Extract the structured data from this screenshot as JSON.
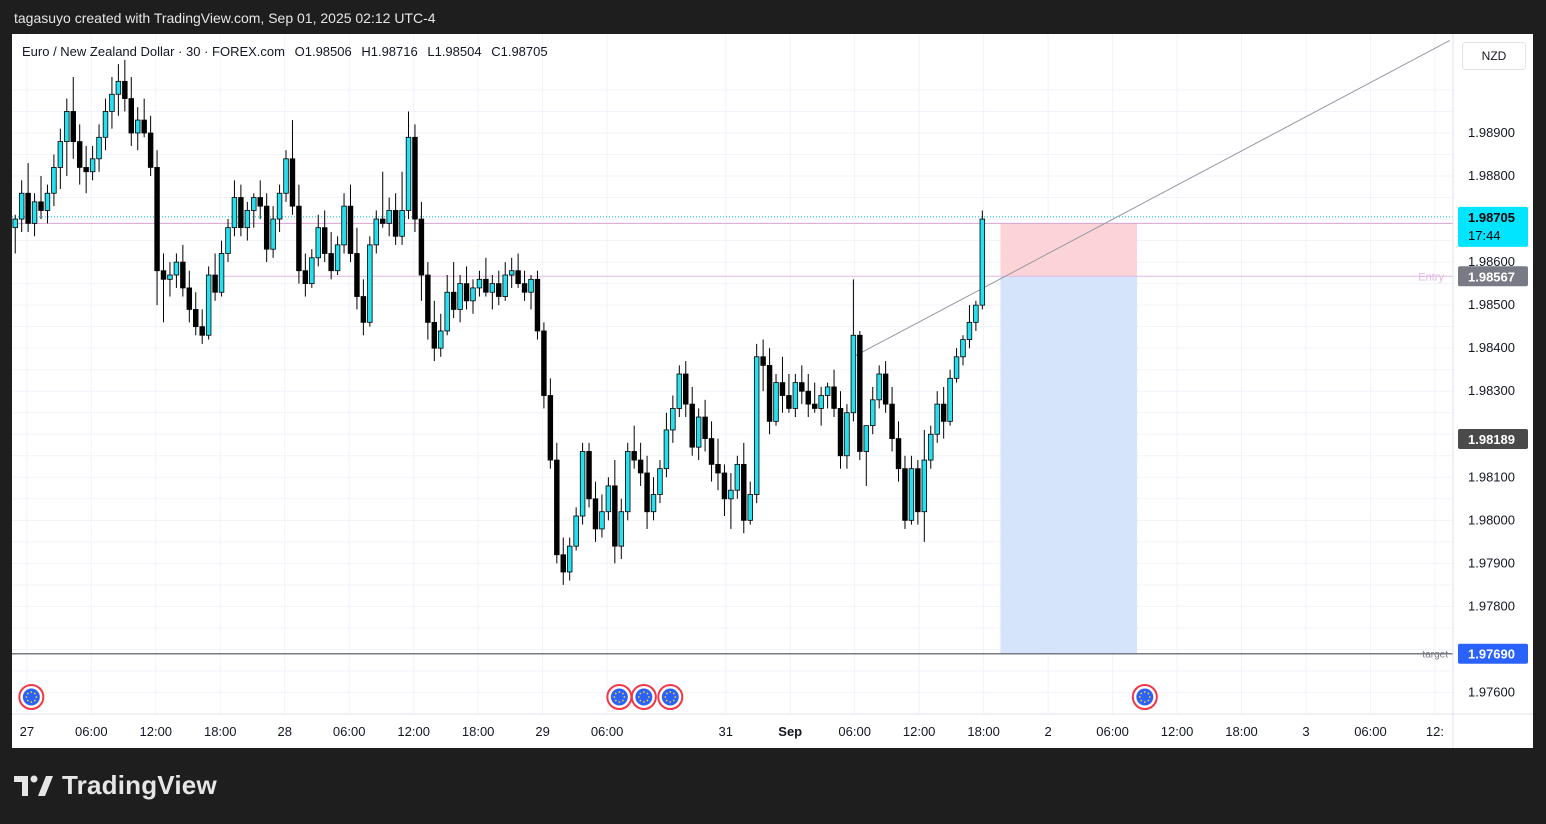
{
  "header": {
    "created_text": "tagasuyo created with TradingView.com, Sep 01, 2025 02:12 UTC-4"
  },
  "legend": {
    "symbol": "Euro / New Zealand Dollar · 30 · FOREX.com",
    "open": "O1.98506",
    "high": "H1.98716",
    "low": "L1.98504",
    "close": "C1.98705"
  },
  "currency_button": "NZD",
  "brand": {
    "name": "TradingView"
  },
  "colors": {
    "bull": "#26e0f0",
    "bear": "#000000",
    "stop_zone": "#fcd4d8",
    "target_zone": "#d5e3fb",
    "price_tag": "#00e5ff",
    "entry_tag": "#787b86",
    "target_tag": "#2962ff",
    "trendline": "#9598a1"
  },
  "icons": {
    "event": "eu-flag-event-icon",
    "logo": "tradingview-logo-icon"
  },
  "chart_data": {
    "type": "candlestick",
    "interval": "30",
    "y_range": [
      1.9755,
      1.9913
    ],
    "x_range": [
      -0.5,
      223
    ],
    "y_ticks": [
      "1.98900",
      "1.98800",
      "1.98600",
      "1.98500",
      "1.98400",
      "1.98300",
      "1.98100",
      "1.98000",
      "1.97900",
      "1.97800",
      "1.97600"
    ],
    "x_ticks": [
      {
        "label": "27",
        "i": 1.8
      },
      {
        "label": "06:00",
        "i": 11.8
      },
      {
        "label": "12:00",
        "i": 21.8
      },
      {
        "label": "18:00",
        "i": 31.8
      },
      {
        "label": "28",
        "i": 41.8
      },
      {
        "label": "06:00",
        "i": 51.8
      },
      {
        "label": "12:00",
        "i": 61.8
      },
      {
        "label": "18:00",
        "i": 71.8
      },
      {
        "label": "29",
        "i": 81.8
      },
      {
        "label": "06:00",
        "i": 91.8
      },
      {
        "label": "31",
        "i": 110.2
      },
      {
        "label": "Sep",
        "i": 120.2
      },
      {
        "label": "06:00",
        "i": 130.2
      },
      {
        "label": "12:00",
        "i": 140.2
      },
      {
        "label": "18:00",
        "i": 150.2
      },
      {
        "label": "2",
        "i": 160.2
      },
      {
        "label": "06:00",
        "i": 170.2
      },
      {
        "label": "12:00",
        "i": 180.2
      },
      {
        "label": "18:00",
        "i": 190.2
      },
      {
        "label": "3",
        "i": 200.2
      },
      {
        "label": "06:00",
        "i": 210.2
      },
      {
        "label": "12:",
        "i": 220.2
      }
    ],
    "candles": [
      [
        1.9868,
        1.9871,
        1.9862,
        1.987
      ],
      [
        1.987,
        1.9879,
        1.9867,
        1.9876
      ],
      [
        1.9876,
        1.9883,
        1.9867,
        1.9869
      ],
      [
        1.9869,
        1.9876,
        1.9866,
        1.9874
      ],
      [
        1.9874,
        1.988,
        1.987,
        1.9872
      ],
      [
        1.9872,
        1.9878,
        1.9869,
        1.9876
      ],
      [
        1.9876,
        1.9885,
        1.9873,
        1.9882
      ],
      [
        1.9882,
        1.9891,
        1.9877,
        1.9888
      ],
      [
        1.9888,
        1.9898,
        1.988,
        1.9895
      ],
      [
        1.9895,
        1.9903,
        1.9884,
        1.9888
      ],
      [
        1.9888,
        1.9892,
        1.9878,
        1.9882
      ],
      [
        1.9882,
        1.9887,
        1.9876,
        1.9881
      ],
      [
        1.9881,
        1.9887,
        1.9879,
        1.9884
      ],
      [
        1.9884,
        1.9892,
        1.9881,
        1.9889
      ],
      [
        1.9889,
        1.9898,
        1.9886,
        1.9895
      ],
      [
        1.9895,
        1.9903,
        1.9891,
        1.9899
      ],
      [
        1.9899,
        1.9906,
        1.9894,
        1.9902
      ],
      [
        1.9902,
        1.9907,
        1.9895,
        1.9898
      ],
      [
        1.9898,
        1.9903,
        1.9887,
        1.989
      ],
      [
        1.989,
        1.9896,
        1.9886,
        1.9893
      ],
      [
        1.9893,
        1.9898,
        1.9889,
        1.989
      ],
      [
        1.989,
        1.9894,
        1.988,
        1.9882
      ],
      [
        1.9882,
        1.9886,
        1.985,
        1.9858
      ],
      [
        1.9858,
        1.9862,
        1.9846,
        1.9856
      ],
      [
        1.9856,
        1.986,
        1.9852,
        1.9857
      ],
      [
        1.9857,
        1.9862,
        1.9854,
        1.986
      ],
      [
        1.986,
        1.9864,
        1.9852,
        1.9854
      ],
      [
        1.9854,
        1.9858,
        1.9846,
        1.9849
      ],
      [
        1.9849,
        1.9853,
        1.9843,
        1.9845
      ],
      [
        1.9845,
        1.9849,
        1.9841,
        1.9843
      ],
      [
        1.9843,
        1.9859,
        1.9842,
        1.9857
      ],
      [
        1.9857,
        1.9862,
        1.9851,
        1.9853
      ],
      [
        1.9853,
        1.9865,
        1.9852,
        1.9862
      ],
      [
        1.9862,
        1.987,
        1.986,
        1.9868
      ],
      [
        1.9868,
        1.9879,
        1.9866,
        1.9875
      ],
      [
        1.9875,
        1.9878,
        1.9866,
        1.9868
      ],
      [
        1.9868,
        1.9874,
        1.9865,
        1.9872
      ],
      [
        1.9872,
        1.9876,
        1.9868,
        1.9875
      ],
      [
        1.9875,
        1.9879,
        1.987,
        1.9873
      ],
      [
        1.9873,
        1.9876,
        1.986,
        1.9863
      ],
      [
        1.9863,
        1.9873,
        1.9861,
        1.987
      ],
      [
        1.987,
        1.9878,
        1.9867,
        1.9876
      ],
      [
        1.9876,
        1.9886,
        1.9874,
        1.9884
      ],
      [
        1.9884,
        1.9893,
        1.9871,
        1.9873
      ],
      [
        1.9873,
        1.9878,
        1.9855,
        1.9858
      ],
      [
        1.9858,
        1.9862,
        1.9852,
        1.9855
      ],
      [
        1.9855,
        1.9863,
        1.9854,
        1.9861
      ],
      [
        1.9861,
        1.9871,
        1.9859,
        1.9868
      ],
      [
        1.9868,
        1.9872,
        1.986,
        1.9862
      ],
      [
        1.9862,
        1.9867,
        1.9856,
        1.9858
      ],
      [
        1.9858,
        1.9866,
        1.9857,
        1.9864
      ],
      [
        1.9864,
        1.9876,
        1.9862,
        1.9873
      ],
      [
        1.9873,
        1.9878,
        1.986,
        1.9862
      ],
      [
        1.9862,
        1.9868,
        1.9849,
        1.9852
      ],
      [
        1.9852,
        1.9856,
        1.9843,
        1.9846
      ],
      [
        1.9846,
        1.9866,
        1.9845,
        1.9864
      ],
      [
        1.9864,
        1.9872,
        1.9862,
        1.987
      ],
      [
        1.987,
        1.9881,
        1.9868,
        1.9869
      ],
      [
        1.9869,
        1.9875,
        1.9866,
        1.9872
      ],
      [
        1.9872,
        1.9876,
        1.9864,
        1.9866
      ],
      [
        1.9866,
        1.9881,
        1.9864,
        1.9872
      ],
      [
        1.9872,
        1.9895,
        1.987,
        1.9889
      ],
      [
        1.9889,
        1.9892,
        1.9867,
        1.987
      ],
      [
        1.987,
        1.9874,
        1.9851,
        1.9857
      ],
      [
        1.9857,
        1.986,
        1.9842,
        1.9846
      ],
      [
        1.9846,
        1.9851,
        1.9837,
        1.984
      ],
      [
        1.984,
        1.9848,
        1.9838,
        1.9844
      ],
      [
        1.9844,
        1.9857,
        1.9843,
        1.9853
      ],
      [
        1.9853,
        1.986,
        1.9847,
        1.9849
      ],
      [
        1.9849,
        1.9857,
        1.9846,
        1.9855
      ],
      [
        1.9855,
        1.9859,
        1.9849,
        1.9851
      ],
      [
        1.9851,
        1.9856,
        1.9848,
        1.9854
      ],
      [
        1.9854,
        1.9858,
        1.9852,
        1.9856
      ],
      [
        1.9856,
        1.9861,
        1.9852,
        1.9853
      ],
      [
        1.9853,
        1.9857,
        1.9849,
        1.9855
      ],
      [
        1.9855,
        1.9858,
        1.985,
        1.9852
      ],
      [
        1.9852,
        1.986,
        1.9851,
        1.9857
      ],
      [
        1.9857,
        1.9861,
        1.9854,
        1.9858
      ],
      [
        1.9858,
        1.9862,
        1.9854,
        1.9855
      ],
      [
        1.9855,
        1.9858,
        1.9851,
        1.9853
      ],
      [
        1.9853,
        1.9857,
        1.9849,
        1.9856
      ],
      [
        1.9856,
        1.9858,
        1.9842,
        1.9844
      ],
      [
        1.9844,
        1.9846,
        1.9826,
        1.9829
      ],
      [
        1.9829,
        1.9833,
        1.9812,
        1.9814
      ],
      [
        1.9814,
        1.9818,
        1.979,
        1.9792
      ],
      [
        1.9792,
        1.9796,
        1.9785,
        1.9788
      ],
      [
        1.9788,
        1.9796,
        1.9786,
        1.9794
      ],
      [
        1.9794,
        1.9803,
        1.9793,
        1.9801
      ],
      [
        1.9801,
        1.9818,
        1.9799,
        1.9816
      ],
      [
        1.9816,
        1.9818,
        1.9803,
        1.9805
      ],
      [
        1.9805,
        1.9809,
        1.9795,
        1.9798
      ],
      [
        1.9798,
        1.9806,
        1.9796,
        1.9802
      ],
      [
        1.9802,
        1.981,
        1.98,
        1.9808
      ],
      [
        1.9808,
        1.9814,
        1.979,
        1.9794
      ],
      [
        1.9794,
        1.9805,
        1.9791,
        1.9802
      ],
      [
        1.9802,
        1.9818,
        1.98,
        1.9816
      ],
      [
        1.9816,
        1.9822,
        1.9812,
        1.9814
      ],
      [
        1.9814,
        1.9818,
        1.9808,
        1.9811
      ],
      [
        1.9811,
        1.9815,
        1.9798,
        1.9802
      ],
      [
        1.9802,
        1.981,
        1.98,
        1.9806
      ],
      [
        1.9806,
        1.9814,
        1.9804,
        1.9812
      ],
      [
        1.9812,
        1.9825,
        1.981,
        1.9821
      ],
      [
        1.9821,
        1.9829,
        1.9818,
        1.9826
      ],
      [
        1.9826,
        1.9836,
        1.9824,
        1.9834
      ],
      [
        1.9834,
        1.9837,
        1.9824,
        1.9827
      ],
      [
        1.9827,
        1.9831,
        1.9815,
        1.9817
      ],
      [
        1.9817,
        1.9826,
        1.9814,
        1.9824
      ],
      [
        1.9824,
        1.9828,
        1.9816,
        1.9819
      ],
      [
        1.9819,
        1.9823,
        1.9809,
        1.9813
      ],
      [
        1.9813,
        1.9819,
        1.9807,
        1.9811
      ],
      [
        1.9811,
        1.9813,
        1.9801,
        1.9805
      ],
      [
        1.9805,
        1.9811,
        1.9798,
        1.9807
      ],
      [
        1.9807,
        1.9815,
        1.9805,
        1.9813
      ],
      [
        1.9813,
        1.9818,
        1.9797,
        1.98
      ],
      [
        1.98,
        1.9809,
        1.9799,
        1.9806
      ],
      [
        1.9806,
        1.9841,
        1.9804,
        1.9838
      ],
      [
        1.9838,
        1.9842,
        1.983,
        1.9836
      ],
      [
        1.9836,
        1.984,
        1.982,
        1.9823
      ],
      [
        1.9823,
        1.9834,
        1.9822,
        1.9832
      ],
      [
        1.9832,
        1.9838,
        1.9825,
        1.9829
      ],
      [
        1.9829,
        1.9834,
        1.9825,
        1.9826
      ],
      [
        1.9826,
        1.9834,
        1.9824,
        1.9832
      ],
      [
        1.9832,
        1.9836,
        1.9827,
        1.983
      ],
      [
        1.983,
        1.9834,
        1.9824,
        1.9827
      ],
      [
        1.9827,
        1.9832,
        1.9825,
        1.9826
      ],
      [
        1.9826,
        1.9831,
        1.9822,
        1.9829
      ],
      [
        1.9829,
        1.9832,
        1.9826,
        1.9831
      ],
      [
        1.9831,
        1.9835,
        1.9824,
        1.9826
      ],
      [
        1.9826,
        1.983,
        1.9812,
        1.9815
      ],
      [
        1.9815,
        1.9827,
        1.9812,
        1.9825
      ],
      [
        1.9825,
        1.9856,
        1.9823,
        1.9843
      ],
      [
        1.9843,
        1.9844,
        1.9814,
        1.9816
      ],
      [
        1.9816,
        1.9822,
        1.9808,
        1.9822
      ],
      [
        1.9822,
        1.9831,
        1.982,
        1.9828
      ],
      [
        1.9828,
        1.9836,
        1.9826,
        1.9834
      ],
      [
        1.9834,
        1.9837,
        1.9825,
        1.9827
      ],
      [
        1.9827,
        1.9831,
        1.9816,
        1.9819
      ],
      [
        1.9819,
        1.9823,
        1.9809,
        1.9812
      ],
      [
        1.9812,
        1.9815,
        1.9798,
        1.98
      ],
      [
        1.98,
        1.9815,
        1.9799,
        1.9812
      ],
      [
        1.9812,
        1.9814,
        1.9799,
        1.9802
      ],
      [
        1.9802,
        1.9821,
        1.9795,
        1.9814
      ],
      [
        1.9814,
        1.9822,
        1.9812,
        1.982
      ],
      [
        1.982,
        1.983,
        1.9818,
        1.9827
      ],
      [
        1.9827,
        1.9831,
        1.9819,
        1.9823
      ],
      [
        1.9823,
        1.9835,
        1.9822,
        1.9833
      ],
      [
        1.9833,
        1.984,
        1.9832,
        1.9838
      ],
      [
        1.9838,
        1.9843,
        1.9836,
        1.9842
      ],
      [
        1.9842,
        1.985,
        1.984,
        1.9846
      ],
      [
        1.9846,
        1.9851,
        1.9844,
        1.985
      ],
      [
        1.985,
        1.9872,
        1.9849,
        1.987
      ]
    ],
    "price_labels": [
      {
        "label": "1.98705",
        "sub": "17:44",
        "price": 1.98705,
        "kind": "last"
      },
      {
        "label": "1.98567",
        "price": 1.98567,
        "kind": "entry",
        "line_label": "Entry"
      },
      {
        "label": "1.98189",
        "price": 1.98189,
        "kind": "marker"
      },
      {
        "label": "1.97690",
        "price": 1.9769,
        "kind": "target",
        "line_label": "target"
      }
    ],
    "position": {
      "entry": 1.98567,
      "stop": 1.9869,
      "target": 1.9769,
      "from_i": 152.8,
      "to_i": 174.0
    },
    "trendline": {
      "from_i": 130,
      "from_price": 1.9838,
      "to_i": 222.5,
      "to_price": 1.99115
    },
    "events_i": [
      2.5,
      93.7,
      97.5,
      101.6,
      175.2
    ]
  }
}
